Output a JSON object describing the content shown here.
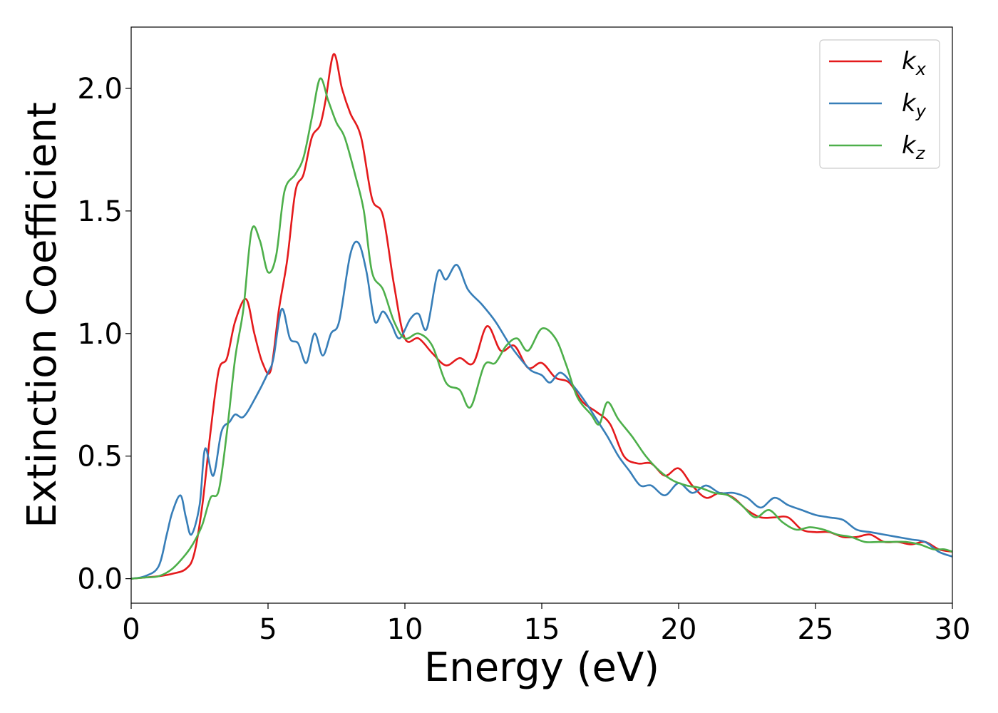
{
  "chart_data": {
    "type": "line",
    "title": "",
    "xlabel": "Energy (eV)",
    "ylabel": "Extinction Coefficient",
    "xlim": [
      0,
      30
    ],
    "ylim": [
      -0.1,
      2.25
    ],
    "xticks": [
      0,
      5,
      10,
      15,
      20,
      25,
      30
    ],
    "yticks": [
      0.0,
      0.5,
      1.0,
      1.5,
      2.0
    ],
    "xtick_labels": [
      "0",
      "5",
      "10",
      "15",
      "20",
      "25",
      "30"
    ],
    "ytick_labels": [
      "0.0",
      "0.5",
      "1.0",
      "1.5",
      "2.0"
    ],
    "grid": false,
    "legend_position": "top-right",
    "series": [
      {
        "name": "k",
        "subscript": "x",
        "color": "#e41a1c",
        "points": [
          [
            0,
            0
          ],
          [
            0.5,
            0.005
          ],
          [
            1,
            0.01
          ],
          [
            1.5,
            0.02
          ],
          [
            2,
            0.04
          ],
          [
            2.3,
            0.1
          ],
          [
            2.6,
            0.3
          ],
          [
            2.9,
            0.6
          ],
          [
            3.2,
            0.85
          ],
          [
            3.5,
            0.9
          ],
          [
            3.8,
            1.05
          ],
          [
            4.2,
            1.14
          ],
          [
            4.5,
            1.0
          ],
          [
            4.8,
            0.88
          ],
          [
            5.1,
            0.85
          ],
          [
            5.4,
            1.1
          ],
          [
            5.7,
            1.3
          ],
          [
            6.0,
            1.58
          ],
          [
            6.3,
            1.65
          ],
          [
            6.6,
            1.8
          ],
          [
            6.9,
            1.85
          ],
          [
            7.1,
            1.95
          ],
          [
            7.4,
            2.14
          ],
          [
            7.7,
            2.0
          ],
          [
            8.0,
            1.9
          ],
          [
            8.4,
            1.8
          ],
          [
            8.8,
            1.55
          ],
          [
            9.2,
            1.48
          ],
          [
            9.6,
            1.2
          ],
          [
            10.0,
            0.98
          ],
          [
            10.5,
            0.98
          ],
          [
            11.0,
            0.92
          ],
          [
            11.5,
            0.87
          ],
          [
            12.0,
            0.9
          ],
          [
            12.5,
            0.88
          ],
          [
            13.0,
            1.03
          ],
          [
            13.5,
            0.93
          ],
          [
            14.0,
            0.95
          ],
          [
            14.5,
            0.86
          ],
          [
            15.0,
            0.88
          ],
          [
            15.5,
            0.82
          ],
          [
            16.0,
            0.8
          ],
          [
            16.5,
            0.72
          ],
          [
            17.0,
            0.68
          ],
          [
            17.5,
            0.63
          ],
          [
            18.0,
            0.5
          ],
          [
            18.5,
            0.47
          ],
          [
            19.0,
            0.47
          ],
          [
            19.5,
            0.42
          ],
          [
            20.0,
            0.45
          ],
          [
            20.5,
            0.38
          ],
          [
            21.0,
            0.33
          ],
          [
            21.5,
            0.35
          ],
          [
            22.0,
            0.33
          ],
          [
            22.5,
            0.28
          ],
          [
            23.0,
            0.25
          ],
          [
            23.5,
            0.25
          ],
          [
            24.0,
            0.25
          ],
          [
            24.5,
            0.2
          ],
          [
            25.0,
            0.19
          ],
          [
            25.5,
            0.19
          ],
          [
            26.0,
            0.17
          ],
          [
            26.5,
            0.17
          ],
          [
            27.0,
            0.18
          ],
          [
            27.5,
            0.15
          ],
          [
            28.0,
            0.15
          ],
          [
            28.5,
            0.14
          ],
          [
            29.0,
            0.15
          ],
          [
            29.5,
            0.12
          ],
          [
            30.0,
            0.11
          ]
        ]
      },
      {
        "name": "k",
        "subscript": "y",
        "color": "#377eb8",
        "points": [
          [
            0,
            0
          ],
          [
            0.5,
            0.01
          ],
          [
            1,
            0.05
          ],
          [
            1.3,
            0.18
          ],
          [
            1.5,
            0.27
          ],
          [
            1.8,
            0.34
          ],
          [
            2.0,
            0.25
          ],
          [
            2.2,
            0.18
          ],
          [
            2.5,
            0.3
          ],
          [
            2.7,
            0.53
          ],
          [
            3.0,
            0.42
          ],
          [
            3.3,
            0.6
          ],
          [
            3.6,
            0.64
          ],
          [
            3.8,
            0.67
          ],
          [
            4.1,
            0.66
          ],
          [
            4.5,
            0.73
          ],
          [
            5.0,
            0.84
          ],
          [
            5.2,
            0.9
          ],
          [
            5.5,
            1.1
          ],
          [
            5.8,
            0.98
          ],
          [
            6.1,
            0.96
          ],
          [
            6.4,
            0.88
          ],
          [
            6.7,
            1.0
          ],
          [
            7.0,
            0.91
          ],
          [
            7.3,
            1.0
          ],
          [
            7.6,
            1.05
          ],
          [
            8.0,
            1.32
          ],
          [
            8.3,
            1.37
          ],
          [
            8.6,
            1.25
          ],
          [
            8.9,
            1.05
          ],
          [
            9.2,
            1.09
          ],
          [
            9.5,
            1.04
          ],
          [
            9.8,
            0.98
          ],
          [
            10.2,
            1.06
          ],
          [
            10.5,
            1.08
          ],
          [
            10.8,
            1.02
          ],
          [
            11.2,
            1.25
          ],
          [
            11.5,
            1.22
          ],
          [
            11.9,
            1.28
          ],
          [
            12.3,
            1.18
          ],
          [
            12.8,
            1.12
          ],
          [
            13.3,
            1.05
          ],
          [
            13.8,
            0.96
          ],
          [
            14.2,
            0.9
          ],
          [
            14.6,
            0.85
          ],
          [
            15.0,
            0.83
          ],
          [
            15.3,
            0.8
          ],
          [
            15.7,
            0.84
          ],
          [
            16.2,
            0.78
          ],
          [
            16.6,
            0.72
          ],
          [
            17.0,
            0.65
          ],
          [
            17.4,
            0.58
          ],
          [
            17.8,
            0.5
          ],
          [
            18.2,
            0.44
          ],
          [
            18.6,
            0.38
          ],
          [
            19.0,
            0.38
          ],
          [
            19.5,
            0.34
          ],
          [
            20.0,
            0.39
          ],
          [
            20.5,
            0.35
          ],
          [
            21.0,
            0.38
          ],
          [
            21.5,
            0.35
          ],
          [
            22.0,
            0.35
          ],
          [
            22.5,
            0.33
          ],
          [
            23.0,
            0.29
          ],
          [
            23.5,
            0.33
          ],
          [
            24.0,
            0.3
          ],
          [
            24.5,
            0.28
          ],
          [
            25.0,
            0.26
          ],
          [
            25.5,
            0.25
          ],
          [
            26.0,
            0.24
          ],
          [
            26.5,
            0.2
          ],
          [
            27.0,
            0.19
          ],
          [
            27.5,
            0.18
          ],
          [
            28.0,
            0.17
          ],
          [
            28.5,
            0.16
          ],
          [
            29.0,
            0.15
          ],
          [
            29.5,
            0.11
          ],
          [
            30.0,
            0.09
          ]
        ]
      },
      {
        "name": "k",
        "subscript": "z",
        "color": "#4daf4a",
        "points": [
          [
            0,
            0
          ],
          [
            0.5,
            0.005
          ],
          [
            1,
            0.01
          ],
          [
            1.5,
            0.04
          ],
          [
            2,
            0.1
          ],
          [
            2.3,
            0.15
          ],
          [
            2.6,
            0.22
          ],
          [
            2.9,
            0.33
          ],
          [
            3.2,
            0.36
          ],
          [
            3.5,
            0.6
          ],
          [
            3.8,
            0.9
          ],
          [
            4.1,
            1.1
          ],
          [
            4.4,
            1.42
          ],
          [
            4.7,
            1.38
          ],
          [
            5.0,
            1.25
          ],
          [
            5.3,
            1.32
          ],
          [
            5.6,
            1.58
          ],
          [
            6.0,
            1.65
          ],
          [
            6.3,
            1.72
          ],
          [
            6.6,
            1.88
          ],
          [
            6.9,
            2.04
          ],
          [
            7.2,
            1.95
          ],
          [
            7.5,
            1.86
          ],
          [
            7.8,
            1.8
          ],
          [
            8.2,
            1.64
          ],
          [
            8.5,
            1.5
          ],
          [
            8.8,
            1.25
          ],
          [
            9.2,
            1.18
          ],
          [
            9.6,
            1.05
          ],
          [
            10.0,
            0.98
          ],
          [
            10.5,
            1.0
          ],
          [
            11.0,
            0.95
          ],
          [
            11.5,
            0.8
          ],
          [
            12.0,
            0.77
          ],
          [
            12.4,
            0.7
          ],
          [
            12.9,
            0.87
          ],
          [
            13.3,
            0.88
          ],
          [
            13.7,
            0.95
          ],
          [
            14.1,
            0.98
          ],
          [
            14.5,
            0.93
          ],
          [
            15.0,
            1.02
          ],
          [
            15.5,
            0.98
          ],
          [
            15.9,
            0.87
          ],
          [
            16.3,
            0.74
          ],
          [
            16.8,
            0.67
          ],
          [
            17.1,
            0.63
          ],
          [
            17.4,
            0.72
          ],
          [
            17.8,
            0.65
          ],
          [
            18.3,
            0.58
          ],
          [
            18.8,
            0.5
          ],
          [
            19.3,
            0.44
          ],
          [
            19.8,
            0.4
          ],
          [
            20.3,
            0.38
          ],
          [
            20.8,
            0.37
          ],
          [
            21.3,
            0.35
          ],
          [
            21.8,
            0.34
          ],
          [
            22.3,
            0.3
          ],
          [
            22.8,
            0.25
          ],
          [
            23.3,
            0.28
          ],
          [
            23.8,
            0.23
          ],
          [
            24.3,
            0.2
          ],
          [
            24.8,
            0.21
          ],
          [
            25.3,
            0.2
          ],
          [
            25.8,
            0.18
          ],
          [
            26.3,
            0.17
          ],
          [
            26.8,
            0.15
          ],
          [
            27.3,
            0.15
          ],
          [
            27.8,
            0.15
          ],
          [
            28.3,
            0.15
          ],
          [
            28.8,
            0.14
          ],
          [
            29.3,
            0.12
          ],
          [
            29.7,
            0.12
          ],
          [
            30.0,
            0.11
          ]
        ]
      }
    ]
  }
}
